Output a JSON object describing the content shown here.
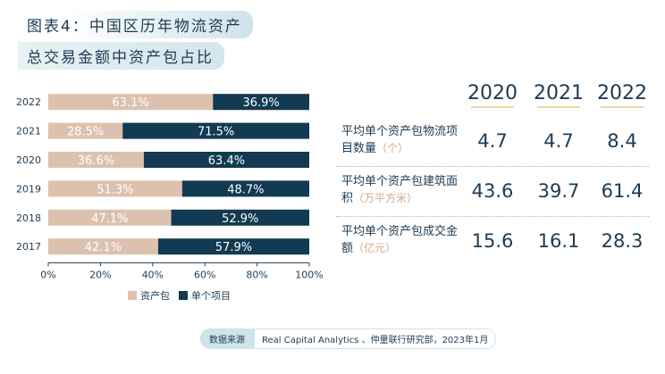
{
  "title": {
    "line1": "图表4：中国区历年物流资产",
    "line2": "总交易金额中资产包占比"
  },
  "chart_data": {
    "type": "bar",
    "orientation": "horizontal",
    "stacked": true,
    "categories": [
      "2022",
      "2021",
      "2020",
      "2019",
      "2018",
      "2017"
    ],
    "series": [
      {
        "name": "资产包",
        "color": "#dcc2ae",
        "values": [
          63.1,
          28.5,
          36.6,
          51.3,
          47.1,
          42.1
        ]
      },
      {
        "name": "单个项目",
        "color": "#123a52",
        "values": [
          36.9,
          71.5,
          63.4,
          48.7,
          52.9,
          57.9
        ]
      }
    ],
    "xlim": [
      0,
      100
    ],
    "x_ticks": [
      "0%",
      "20%",
      "40%",
      "60%",
      "80%",
      "100%"
    ],
    "legend_position": "bottom",
    "grid": false
  },
  "table": {
    "years": [
      "2020",
      "2021",
      "2022"
    ],
    "rows": [
      {
        "label": "平均单个资产包物流项目数量",
        "unit": "（个）",
        "values": [
          "4.7",
          "4.7",
          "8.4"
        ]
      },
      {
        "label": "平均单个资产包建筑面积",
        "unit": "（万平方米）",
        "values": [
          "43.6",
          "39.7",
          "61.4"
        ]
      },
      {
        "label": "平均单个资产包成交金额",
        "unit": "（亿元）",
        "values": [
          "15.6",
          "16.1",
          "28.3"
        ]
      }
    ]
  },
  "source": {
    "tag": "数据来源",
    "text": "Real Capital Analytics 、仲量联行研究部，2023年1月"
  }
}
